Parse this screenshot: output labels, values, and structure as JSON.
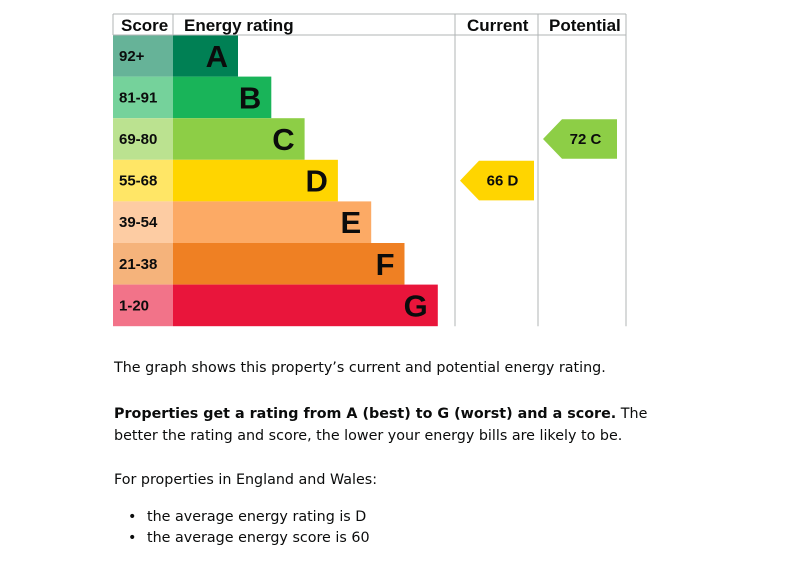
{
  "chart_data": {
    "type": "table",
    "headers": {
      "score": "Score",
      "rating": "Energy rating",
      "current": "Current",
      "potential": "Potential"
    },
    "bands": [
      {
        "letter": "A",
        "range": "92+",
        "min": 92,
        "max": 100,
        "color": "#008054",
        "score_color": "#66b398"
      },
      {
        "letter": "B",
        "range": "81-91",
        "min": 81,
        "max": 91,
        "color": "#19b459",
        "score_color": "#75d29b"
      },
      {
        "letter": "C",
        "range": "69-80",
        "min": 69,
        "max": 80,
        "color": "#8dce46",
        "score_color": "#bbe290"
      },
      {
        "letter": "D",
        "range": "55-68",
        "min": 55,
        "max": 68,
        "color": "#ffd500",
        "score_color": "#ffe666"
      },
      {
        "letter": "E",
        "range": "39-54",
        "min": 39,
        "max": 54,
        "color": "#fcaa65",
        "score_color": "#fdcca3"
      },
      {
        "letter": "F",
        "range": "21-38",
        "min": 21,
        "max": 38,
        "color": "#ef8023",
        "score_color": "#f5b37b"
      },
      {
        "letter": "G",
        "range": "1-20",
        "min": 1,
        "max": 20,
        "color": "#e9153b",
        "score_color": "#f27389"
      }
    ],
    "current": {
      "score": 66,
      "letter": "D",
      "label": "66 D",
      "color": "#ffd500"
    },
    "potential": {
      "score": 72,
      "letter": "C",
      "label": "72 C",
      "color": "#8dce46"
    }
  },
  "text": {
    "p1": "The graph shows this property’s current and potential energy rating.",
    "p2_bold": "Properties get a rating from A (best) to G (worst) and a score.",
    "p2_rest": " The better the rating and score, the lower your energy bills are likely to be.",
    "p3": "For properties in England and Wales:",
    "bullets": [
      "the average energy rating is D",
      "the average energy score is 60"
    ]
  }
}
